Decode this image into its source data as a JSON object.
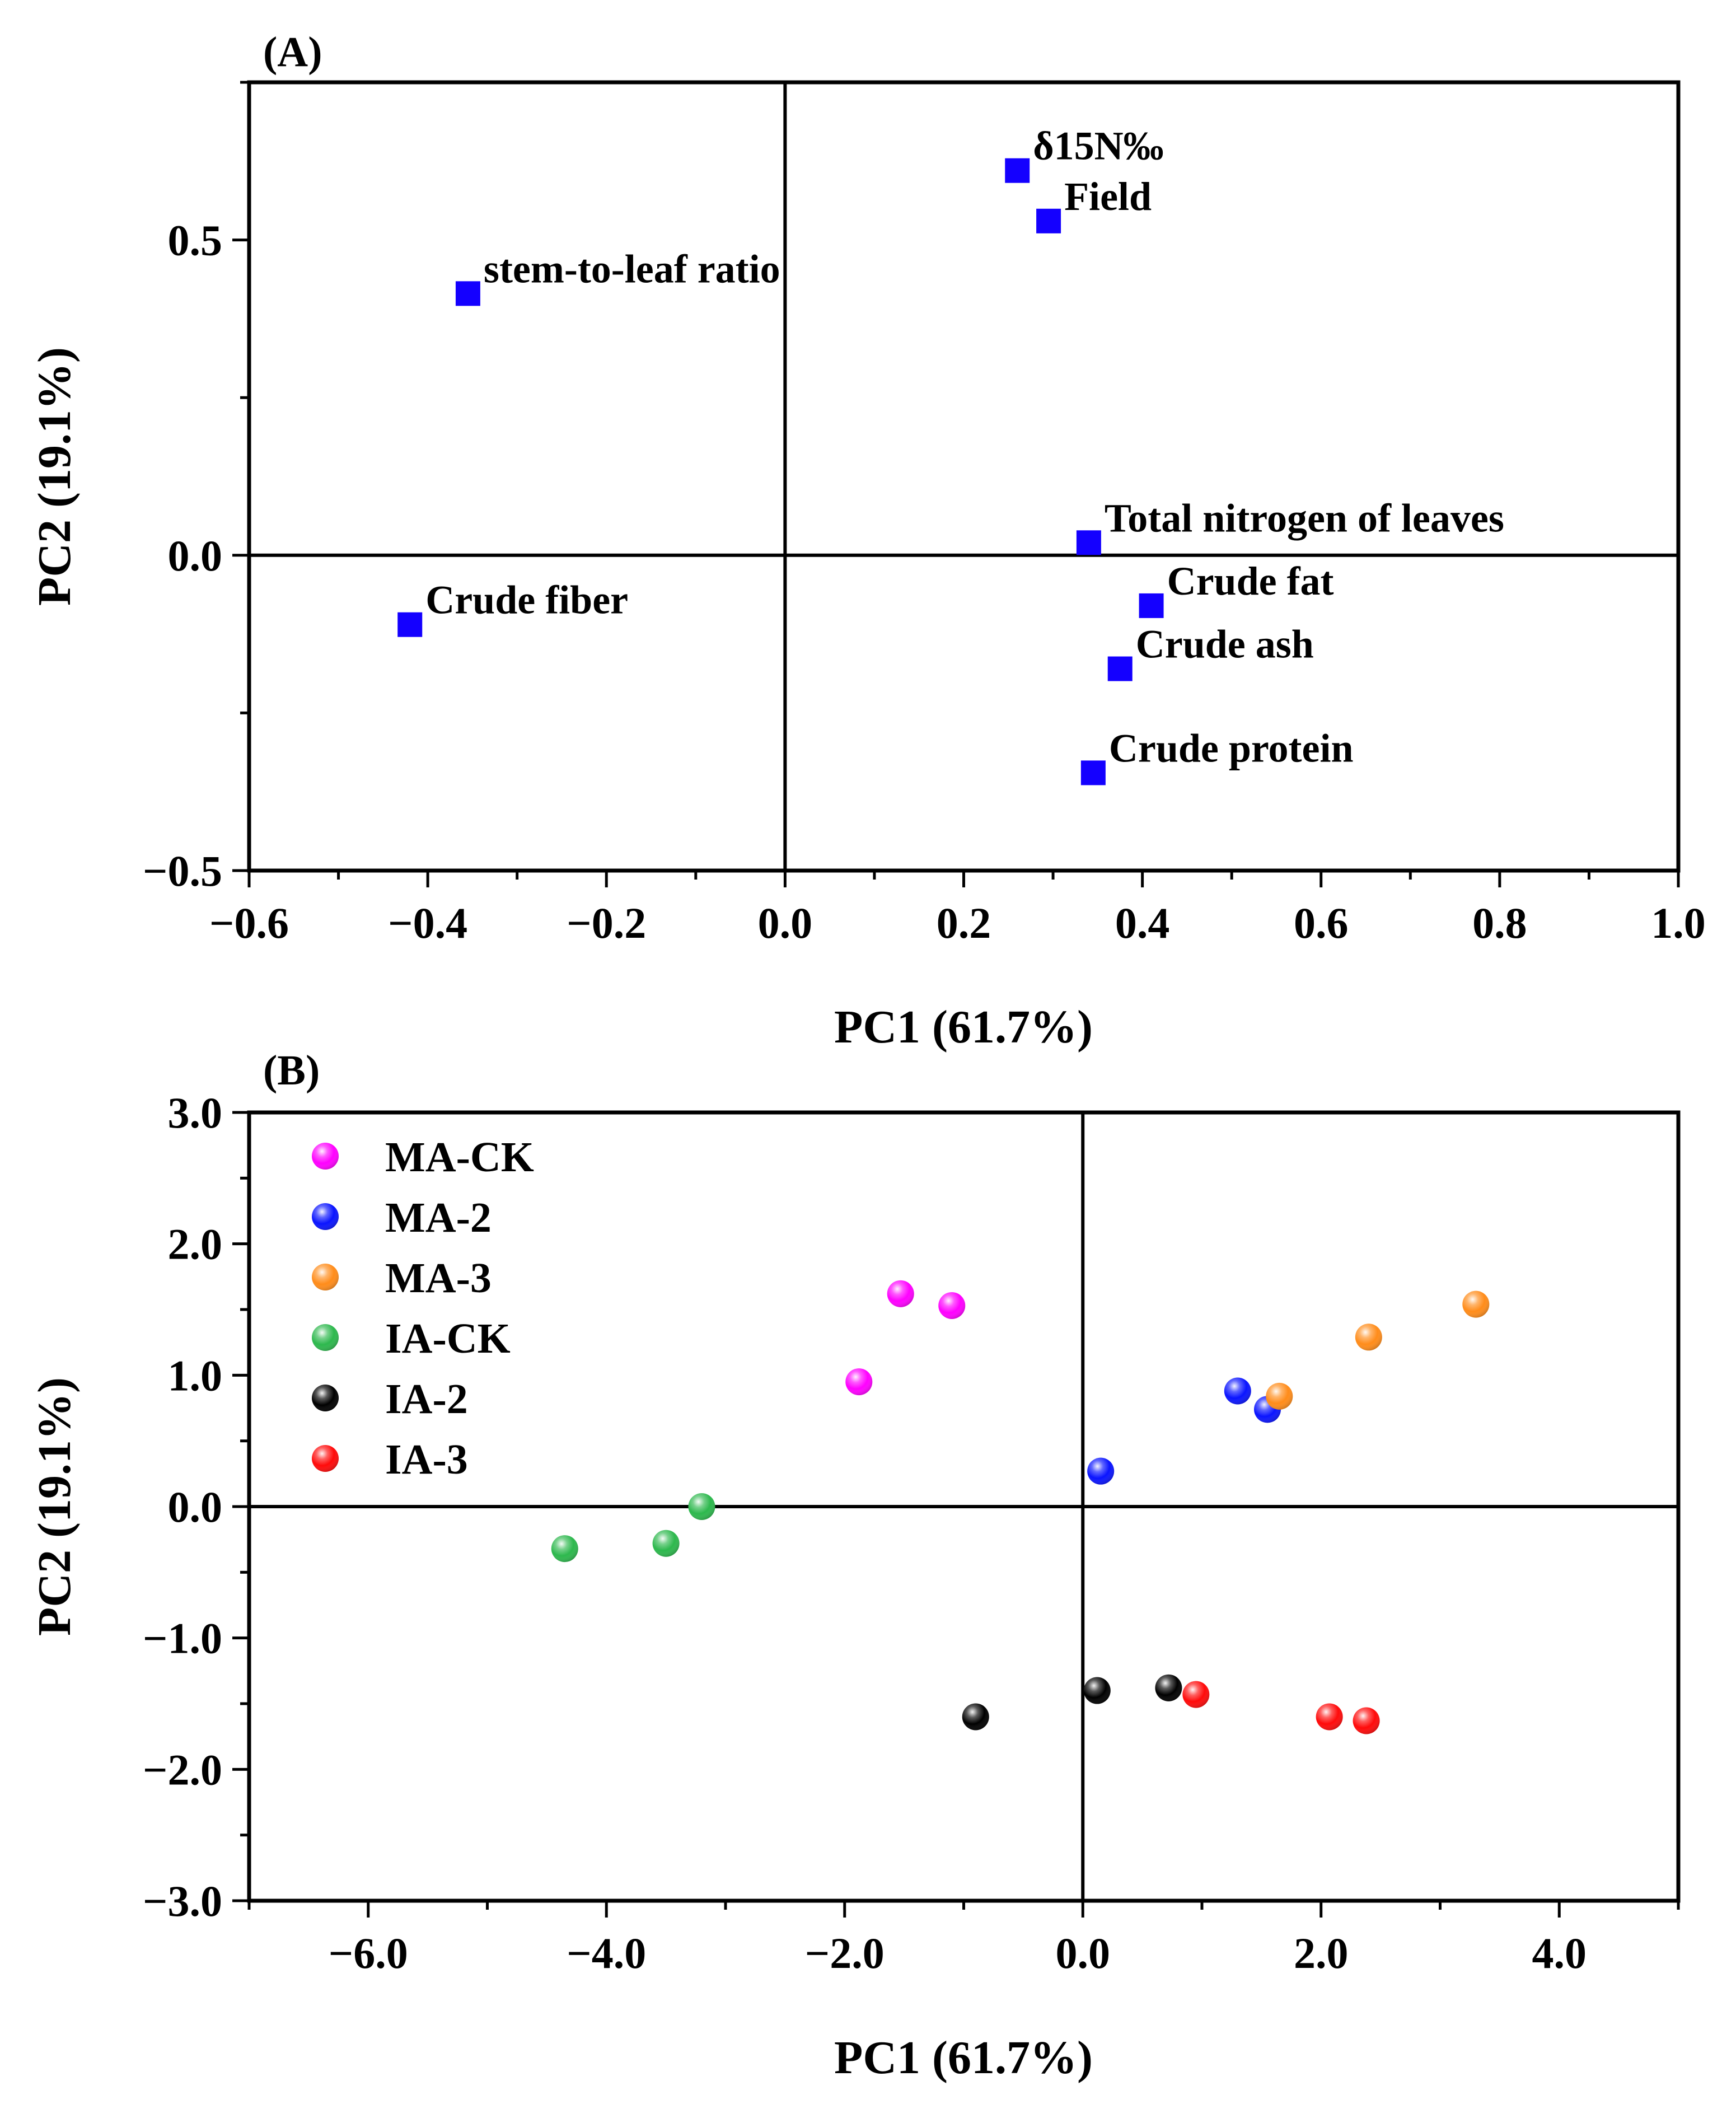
{
  "colors": {
    "marker_loading": "#1400ff",
    "axis": "#000000"
  },
  "chart_data": [
    {
      "panel": "(A)",
      "type": "scatter",
      "xlabel": "PC1 (61.7%)",
      "ylabel": "PC2 (19.1%)",
      "xlim": [
        -0.6,
        1.0
      ],
      "ylim": [
        -0.5,
        0.75
      ],
      "xticks": [
        -0.6,
        -0.4,
        -0.2,
        0.0,
        0.2,
        0.4,
        0.6,
        0.8,
        1.0
      ],
      "xtick_labels": [
        "−0.6",
        "−0.4",
        "−0.2",
        "0.0",
        "0.2",
        "0.4",
        "0.6",
        "0.8",
        "1.0"
      ],
      "yticks": [
        -0.5,
        0.0,
        0.5
      ],
      "ytick_labels": [
        "−0.5",
        "0.0",
        "0.5"
      ],
      "grid": false,
      "reference_lines": {
        "x": 0,
        "y": 0
      },
      "marker": "square",
      "marker_color": "#1400ff",
      "points": [
        {
          "label": "δ15N‰",
          "x": 0.26,
          "y": 0.61
        },
        {
          "label": "Field",
          "x": 0.295,
          "y": 0.53
        },
        {
          "label": "stem-to-leaf ratio",
          "x": -0.355,
          "y": 0.415
        },
        {
          "label": "Total nitrogen  of leaves",
          "x": 0.34,
          "y": 0.02
        },
        {
          "label": "Crude fiber",
          "x": -0.42,
          "y": -0.11
        },
        {
          "label": "Crude fat",
          "x": 0.41,
          "y": -0.08
        },
        {
          "label": "Crude ash",
          "x": 0.375,
          "y": -0.18
        },
        {
          "label": "Crude protein",
          "x": 0.345,
          "y": -0.345
        }
      ]
    },
    {
      "panel": "(B)",
      "type": "scatter",
      "xlabel": "PC1 (61.7%)",
      "ylabel": "PC2 (19.1%)",
      "xlim": [
        -7.0,
        5.0
      ],
      "ylim": [
        -3.0,
        3.0
      ],
      "xticks": [
        -6.0,
        -4.0,
        -2.0,
        0.0,
        2.0,
        4.0
      ],
      "xtick_labels": [
        "−6.0",
        "−4.0",
        "−2.0",
        "0.0",
        "2.0",
        "4.0"
      ],
      "yticks": [
        -3.0,
        -2.0,
        -1.0,
        0.0,
        1.0,
        2.0,
        3.0
      ],
      "ytick_labels": [
        "−3.0",
        "−2.0",
        "−1.0",
        "0.0",
        "1.0",
        "2.0",
        "3.0"
      ],
      "grid": false,
      "reference_lines": {
        "x": 0,
        "y": 0
      },
      "legend_position": "top-left",
      "series": [
        {
          "name": "MA-CK",
          "color": "#ff00ff",
          "points": [
            {
              "x": -1.53,
              "y": 1.62
            },
            {
              "x": -1.1,
              "y": 1.53
            },
            {
              "x": -1.88,
              "y": 0.95
            }
          ]
        },
        {
          "name": "MA-2",
          "color": "#0a14ff",
          "points": [
            {
              "x": 1.3,
              "y": 0.88
            },
            {
              "x": 1.55,
              "y": 0.74
            },
            {
              "x": 0.15,
              "y": 0.27
            }
          ]
        },
        {
          "name": "MA-3",
          "color": "#ff8c1a",
          "points": [
            {
              "x": 3.3,
              "y": 1.54
            },
            {
              "x": 2.4,
              "y": 1.29
            },
            {
              "x": 1.65,
              "y": 0.84
            }
          ]
        },
        {
          "name": "IA-CK",
          "color": "#2db84d",
          "points": [
            {
              "x": -3.2,
              "y": 0.0
            },
            {
              "x": -3.5,
              "y": -0.28
            },
            {
              "x": -4.35,
              "y": -0.32
            }
          ]
        },
        {
          "name": "IA-2",
          "color": "#000000",
          "points": [
            {
              "x": 0.12,
              "y": -1.4
            },
            {
              "x": 0.72,
              "y": -1.38
            },
            {
              "x": -0.9,
              "y": -1.6
            }
          ]
        },
        {
          "name": "IA-3",
          "color": "#ff0a0a",
          "points": [
            {
              "x": 0.95,
              "y": -1.43
            },
            {
              "x": 2.07,
              "y": -1.6
            },
            {
              "x": 2.38,
              "y": -1.63
            }
          ]
        }
      ]
    }
  ]
}
